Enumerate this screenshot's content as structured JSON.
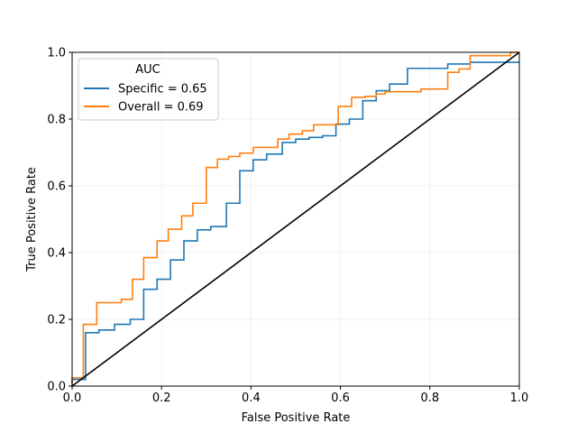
{
  "chart_data": {
    "type": "line",
    "title": "",
    "xlabel": "False Positive Rate",
    "ylabel": "True Positive Rate",
    "xlim": [
      0,
      1
    ],
    "ylim": [
      0,
      1
    ],
    "xticks": [
      "0.0",
      "0.2",
      "0.4",
      "0.6",
      "0.8",
      "1.0"
    ],
    "yticks": [
      "0.0",
      "0.2",
      "0.4",
      "0.6",
      "0.8",
      "1.0"
    ],
    "grid": true,
    "legend": {
      "title": "AUC",
      "placement": "upper-left"
    },
    "series": [
      {
        "name": "Specific = 0.65",
        "color": "#1f77b4",
        "step": true,
        "x": [
          0.0,
          0.0,
          0.03,
          0.03,
          0.06,
          0.06,
          0.095,
          0.095,
          0.13,
          0.13,
          0.16,
          0.16,
          0.19,
          0.19,
          0.22,
          0.22,
          0.25,
          0.25,
          0.28,
          0.28,
          0.31,
          0.31,
          0.345,
          0.345,
          0.375,
          0.375,
          0.405,
          0.405,
          0.435,
          0.435,
          0.47,
          0.47,
          0.5,
          0.5,
          0.53,
          0.53,
          0.56,
          0.56,
          0.59,
          0.59,
          0.62,
          0.62,
          0.65,
          0.65,
          0.68,
          0.68,
          0.71,
          0.71,
          0.75,
          0.75,
          0.84,
          0.84,
          0.89,
          0.89,
          1.0
        ],
        "y": [
          0.0,
          0.02,
          0.02,
          0.16,
          0.16,
          0.168,
          0.168,
          0.185,
          0.185,
          0.2,
          0.2,
          0.29,
          0.29,
          0.32,
          0.32,
          0.378,
          0.378,
          0.435,
          0.435,
          0.468,
          0.468,
          0.478,
          0.478,
          0.548,
          0.548,
          0.645,
          0.645,
          0.678,
          0.678,
          0.695,
          0.695,
          0.73,
          0.73,
          0.74,
          0.74,
          0.745,
          0.745,
          0.75,
          0.75,
          0.785,
          0.785,
          0.8,
          0.8,
          0.855,
          0.855,
          0.885,
          0.885,
          0.905,
          0.905,
          0.952,
          0.952,
          0.965,
          0.965,
          0.97,
          0.97
        ]
      },
      {
        "name": "Overall = 0.69",
        "color": "#ff7f0e",
        "step": true,
        "x": [
          0.0,
          0.0,
          0.025,
          0.025,
          0.055,
          0.055,
          0.11,
          0.11,
          0.135,
          0.135,
          0.16,
          0.16,
          0.19,
          0.19,
          0.215,
          0.215,
          0.245,
          0.245,
          0.27,
          0.27,
          0.3,
          0.3,
          0.325,
          0.325,
          0.35,
          0.35,
          0.375,
          0.375,
          0.405,
          0.405,
          0.46,
          0.46,
          0.485,
          0.485,
          0.515,
          0.515,
          0.54,
          0.54,
          0.595,
          0.595,
          0.625,
          0.625,
          0.655,
          0.655,
          0.68,
          0.68,
          0.7,
          0.7,
          0.78,
          0.78,
          0.84,
          0.84,
          0.865,
          0.865,
          0.89,
          0.89,
          0.98,
          0.98,
          1.0
        ],
        "y": [
          0.0,
          0.025,
          0.025,
          0.185,
          0.185,
          0.25,
          0.25,
          0.26,
          0.26,
          0.32,
          0.32,
          0.385,
          0.385,
          0.435,
          0.435,
          0.47,
          0.47,
          0.51,
          0.51,
          0.548,
          0.548,
          0.655,
          0.655,
          0.68,
          0.68,
          0.688,
          0.688,
          0.698,
          0.698,
          0.715,
          0.715,
          0.74,
          0.74,
          0.755,
          0.755,
          0.765,
          0.765,
          0.783,
          0.783,
          0.838,
          0.838,
          0.865,
          0.865,
          0.868,
          0.868,
          0.875,
          0.875,
          0.882,
          0.882,
          0.89,
          0.89,
          0.94,
          0.94,
          0.95,
          0.95,
          0.99,
          0.99,
          1.0,
          1.0
        ]
      },
      {
        "name": "",
        "color": "#000000",
        "step": false,
        "legend": false,
        "x": [
          0.0,
          1.0
        ],
        "y": [
          0.0,
          1.0
        ]
      }
    ]
  }
}
